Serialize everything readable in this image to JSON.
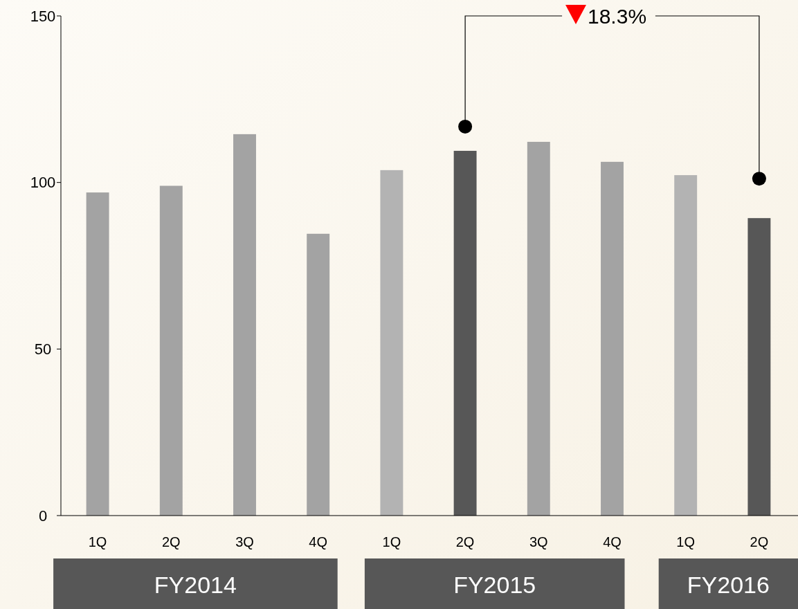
{
  "chart_data": {
    "type": "bar",
    "categories": [
      "1Q",
      "2Q",
      "3Q",
      "4Q",
      "1Q",
      "2Q",
      "3Q",
      "4Q",
      "1Q",
      "2Q"
    ],
    "values": [
      97,
      99,
      114.5,
      84.6,
      103.7,
      109.5,
      112.2,
      106.2,
      102.2,
      89.3
    ],
    "colors": [
      "#a3a3a3",
      "#a3a3a3",
      "#a3a3a3",
      "#a3a3a3",
      "#b3b3b3",
      "#575757",
      "#a3a3a3",
      "#a3a3a3",
      "#b3b3b3",
      "#575757"
    ],
    "ylim": [
      0,
      150
    ],
    "yticks": [
      0,
      50,
      100,
      150
    ],
    "grid": false,
    "annotations": [
      "18.3%",
      "FY2014",
      "FY2015",
      "FY2016"
    ]
  }
}
